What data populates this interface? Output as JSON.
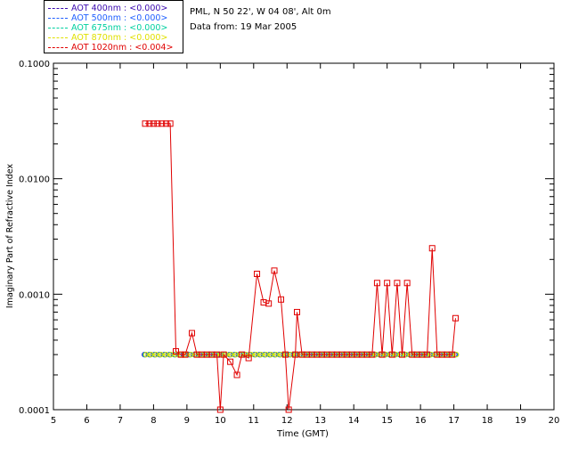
{
  "info": {
    "site": "PML, N 50 22', W 04 08', Alt 0m",
    "date": "Data from: 19 Mar 2005"
  },
  "legend": [
    {
      "label": "AOT  400nm : <0.000>",
      "color": "#3a0ab0"
    },
    {
      "label": "AOT  500nm : <0.000>",
      "color": "#2060ff"
    },
    {
      "label": "AOT  675nm : <0.000>",
      "color": "#00d0a0"
    },
    {
      "label": "AOT  870nm : <0.000>",
      "color": "#e0e000"
    },
    {
      "label": "AOT 1020nm : <0.004>",
      "color": "#e00000"
    }
  ],
  "chart_data": {
    "type": "line",
    "title": "",
    "xlabel": "Time (GMT)",
    "ylabel": "Imaginary Part of Refractive Index",
    "xlim": [
      5,
      20
    ],
    "ylim": [
      0.0001,
      0.1
    ],
    "yscale": "log",
    "xticks": [
      5,
      6,
      7,
      8,
      9,
      10,
      11,
      12,
      13,
      14,
      15,
      16,
      17,
      18,
      19,
      20
    ],
    "yticks": [
      {
        "value": 0.0001,
        "label": "0.0001"
      },
      {
        "value": 0.001,
        "label": "0.0010"
      },
      {
        "value": 0.01,
        "label": "0.0100"
      },
      {
        "value": 0.1,
        "label": "0.1000"
      }
    ],
    "baseline_value": 0.0003,
    "series": [
      {
        "name": "AOT 400nm",
        "color": "#3a0ab0",
        "x": [
          7.75,
          7.9,
          8.05,
          8.2,
          8.35,
          8.5,
          8.65,
          8.8,
          8.95,
          9.1,
          9.25,
          9.4,
          9.55,
          9.7,
          9.85,
          10.0,
          10.15,
          10.3,
          10.45,
          10.6,
          10.75,
          10.9,
          11.05,
          11.2,
          11.35,
          11.5,
          11.65,
          11.8,
          11.95,
          12.1,
          12.25,
          12.4,
          12.55,
          12.7,
          12.85,
          13.0,
          13.15,
          13.3,
          13.45,
          13.6,
          13.75,
          13.9,
          14.05,
          14.2,
          14.35,
          14.5,
          14.65,
          14.8,
          14.95,
          15.1,
          15.25,
          15.4,
          15.55,
          15.7,
          15.85,
          16.0,
          16.15,
          16.3,
          16.45,
          16.6,
          16.75,
          16.9,
          17.05
        ],
        "y_const": 0.0003
      },
      {
        "name": "AOT 500nm",
        "color": "#2060ff",
        "x": [
          7.75,
          7.9,
          8.05,
          8.2,
          8.35,
          8.5,
          8.65,
          8.8,
          8.95,
          9.1,
          9.25,
          9.4,
          9.55,
          9.7,
          9.85,
          10.0,
          10.15,
          10.3,
          10.45,
          10.6,
          10.75,
          10.9,
          11.05,
          11.2,
          11.35,
          11.5,
          11.65,
          11.8,
          11.95,
          12.1,
          12.25,
          12.4,
          12.55,
          12.7,
          12.85,
          13.0,
          13.15,
          13.3,
          13.45,
          13.6,
          13.75,
          13.9,
          14.05,
          14.2,
          14.35,
          14.5,
          14.65,
          14.8,
          14.95,
          15.1,
          15.25,
          15.4,
          15.55,
          15.7,
          15.85,
          16.0,
          16.15,
          16.3,
          16.45,
          16.6,
          16.75,
          16.9,
          17.05
        ],
        "y_const": 0.0003
      },
      {
        "name": "AOT 675nm",
        "color": "#00d0a0",
        "x": [
          7.75,
          7.9,
          8.05,
          8.2,
          8.35,
          8.5,
          8.65,
          8.8,
          8.95,
          9.1,
          9.25,
          9.4,
          9.55,
          9.7,
          9.85,
          10.0,
          10.15,
          10.3,
          10.45,
          10.6,
          10.75,
          10.9,
          11.05,
          11.2,
          11.35,
          11.5,
          11.65,
          11.8,
          11.95,
          12.1,
          12.25,
          12.4,
          12.55,
          12.7,
          12.85,
          13.0,
          13.15,
          13.3,
          13.45,
          13.6,
          13.75,
          13.9,
          14.05,
          14.2,
          14.35,
          14.5,
          14.65,
          14.8,
          14.95,
          15.1,
          15.25,
          15.4,
          15.55,
          15.7,
          15.85,
          16.0,
          16.15,
          16.3,
          16.45,
          16.6,
          16.75,
          16.9,
          17.05
        ],
        "y_const": 0.0003
      },
      {
        "name": "AOT 870nm",
        "color": "#e0e000",
        "x": [
          7.75,
          7.9,
          8.05,
          8.2,
          8.35,
          8.5,
          8.65,
          8.8,
          8.95,
          9.1,
          9.25,
          9.4,
          9.55,
          9.7,
          9.85,
          10.0,
          10.15,
          10.3,
          10.45,
          10.6,
          10.75,
          10.9,
          11.05,
          11.2,
          11.35,
          11.5,
          11.65,
          11.8,
          11.95,
          12.1,
          12.25,
          12.4,
          12.55,
          12.7,
          12.85,
          13.0,
          13.15,
          13.3,
          13.45,
          13.6,
          13.75,
          13.9,
          14.05,
          14.2,
          14.35,
          14.5,
          14.65,
          14.8,
          14.95,
          15.1,
          15.25,
          15.4,
          15.55,
          15.7,
          15.85,
          16.0,
          16.15,
          16.3,
          16.45,
          16.6,
          16.75,
          16.9,
          17.05
        ],
        "y_const": 0.0003
      },
      {
        "name": "AOT 1020nm",
        "color": "#e00000",
        "points": [
          [
            7.75,
            0.03
          ],
          [
            7.88,
            0.03
          ],
          [
            8.0,
            0.03
          ],
          [
            8.12,
            0.03
          ],
          [
            8.25,
            0.03
          ],
          [
            8.38,
            0.03
          ],
          [
            8.5,
            0.03
          ],
          [
            8.67,
            0.00032
          ],
          [
            8.82,
            0.0003
          ],
          [
            8.95,
            0.0003
          ],
          [
            9.15,
            0.00046
          ],
          [
            9.3,
            0.0003
          ],
          [
            9.45,
            0.0003
          ],
          [
            9.6,
            0.0003
          ],
          [
            9.75,
            0.0003
          ],
          [
            9.9,
            0.0003
          ],
          [
            10.0,
            0.0001
          ],
          [
            10.1,
            0.0003
          ],
          [
            10.3,
            0.00026
          ],
          [
            10.5,
            0.0002
          ],
          [
            10.65,
            0.0003
          ],
          [
            10.85,
            0.00028
          ],
          [
            11.1,
            0.0015
          ],
          [
            11.3,
            0.00085
          ],
          [
            11.45,
            0.00083
          ],
          [
            11.62,
            0.0016
          ],
          [
            11.82,
            0.0009
          ],
          [
            11.95,
            0.0003
          ],
          [
            12.05,
            9e-05
          ],
          [
            12.25,
            0.0003
          ],
          [
            12.3,
            0.0007
          ],
          [
            12.45,
            0.0003
          ],
          [
            12.6,
            0.0003
          ],
          [
            12.75,
            0.0003
          ],
          [
            12.9,
            0.0003
          ],
          [
            13.05,
            0.0003
          ],
          [
            13.2,
            0.0003
          ],
          [
            13.35,
            0.0003
          ],
          [
            13.5,
            0.0003
          ],
          [
            13.65,
            0.0003
          ],
          [
            13.8,
            0.0003
          ],
          [
            13.95,
            0.0003
          ],
          [
            14.1,
            0.0003
          ],
          [
            14.25,
            0.0003
          ],
          [
            14.4,
            0.0003
          ],
          [
            14.55,
            0.0003
          ],
          [
            14.7,
            0.00125
          ],
          [
            14.85,
            0.0003
          ],
          [
            15.0,
            0.00125
          ],
          [
            15.15,
            0.0003
          ],
          [
            15.3,
            0.00125
          ],
          [
            15.45,
            0.0003
          ],
          [
            15.6,
            0.00125
          ],
          [
            15.75,
            0.0003
          ],
          [
            15.9,
            0.0003
          ],
          [
            16.05,
            0.0003
          ],
          [
            16.2,
            0.0003
          ],
          [
            16.35,
            0.0025
          ],
          [
            16.5,
            0.0003
          ],
          [
            16.65,
            0.0003
          ],
          [
            16.8,
            0.0003
          ],
          [
            16.95,
            0.0003
          ],
          [
            17.05,
            0.00062
          ]
        ]
      }
    ]
  }
}
